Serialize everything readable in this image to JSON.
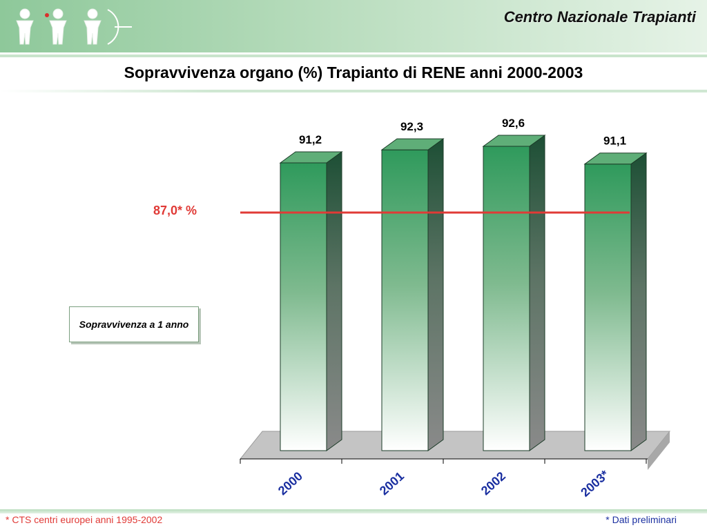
{
  "header": {
    "brand": "Centro Nazionale Trapianti"
  },
  "slide": {
    "title": "Sopravvivenza organo (%) Trapianto di RENE anni 2000-2003"
  },
  "legend": {
    "label": "Sopravvivenza a 1 anno"
  },
  "reference": {
    "label": "87,0* %",
    "value": 87.0,
    "color": "#e03a36"
  },
  "notes": {
    "left": "* CTS centri europei anni 1995-2002",
    "right": "* Dati preliminari"
  },
  "colors": {
    "bar_top": "#2f9a5c",
    "bar_side": "#1d4f35",
    "floor": "#c4c4c4",
    "axis_label": "#1a2fa0"
  },
  "chart_data": {
    "type": "bar",
    "title": "Sopravvivenza organo (%) Trapianto di RENE anni 2000-2003",
    "xlabel": "",
    "ylabel": "",
    "categories": [
      "2000",
      "2001",
      "2002",
      "2003*"
    ],
    "values": [
      91.2,
      92.3,
      92.6,
      91.1
    ],
    "value_labels": [
      "91,2",
      "92,3",
      "92,6",
      "91,1"
    ],
    "ylim": [
      50,
      100
    ],
    "reference_line": 87.0,
    "grid": false,
    "legend_position": "left"
  }
}
